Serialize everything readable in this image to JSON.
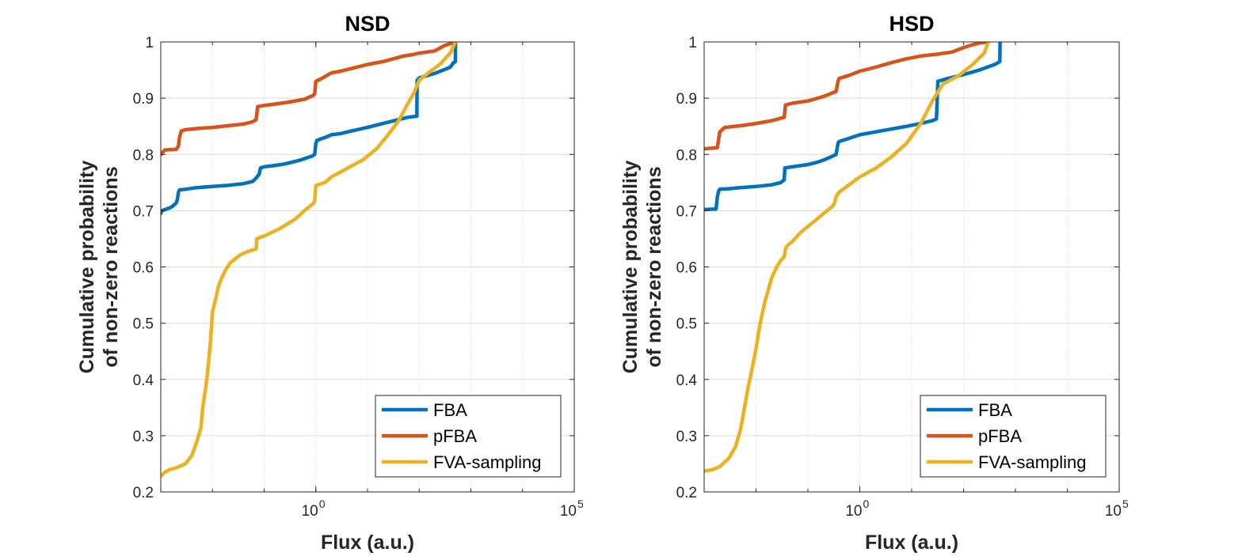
{
  "figure": {
    "background": "#ffffff"
  },
  "chart_data": [
    {
      "type": "line",
      "title": "NSD",
      "xlabel": "Flux (a.u.)",
      "ylabel": [
        "Cumulative probability",
        "of non-zero reactions"
      ],
      "xscale": "log",
      "xlim": [
        0.001,
        100000.0
      ],
      "ylim": [
        0.2,
        1.0
      ],
      "yticks": [
        "0.2",
        "0.3",
        "0.4",
        "0.5",
        "0.6",
        "0.7",
        "0.8",
        "0.9",
        "1"
      ],
      "xticks": [
        {
          "base": "10",
          "exp": "0",
          "value": 1
        },
        {
          "base": "10",
          "exp": "5",
          "value": 100000
        }
      ],
      "grid": true,
      "legend_position": "bottom-right",
      "series": [
        {
          "name": "FBA",
          "color": "#0072BD",
          "x": [
            0.001,
            0.00105,
            0.0012,
            0.0015,
            0.0017,
            0.002,
            0.0021,
            0.0022,
            0.0023,
            0.003,
            0.005,
            0.01,
            0.02,
            0.04,
            0.06,
            0.07,
            0.08,
            0.085,
            0.1,
            0.15,
            0.25,
            0.5,
            0.85,
            0.95,
            1.0,
            1.05,
            1.3,
            1.5,
            2,
            3,
            5,
            10,
            20,
            40,
            60,
            90,
            91,
            100,
            200,
            400,
            450,
            500,
            505
          ],
          "y": [
            0.695,
            0.7,
            0.702,
            0.705,
            0.708,
            0.714,
            0.72,
            0.733,
            0.737,
            0.738,
            0.741,
            0.743,
            0.745,
            0.748,
            0.752,
            0.758,
            0.765,
            0.776,
            0.778,
            0.78,
            0.783,
            0.79,
            0.797,
            0.8,
            0.82,
            0.825,
            0.828,
            0.83,
            0.835,
            0.837,
            0.842,
            0.848,
            0.855,
            0.862,
            0.866,
            0.868,
            0.932,
            0.936,
            0.944,
            0.955,
            0.962,
            0.965,
            1.0
          ]
        },
        {
          "name": "pFBA",
          "color": "#D95319",
          "x": [
            0.001,
            0.0012,
            0.002,
            0.0022,
            0.0023,
            0.0025,
            0.003,
            0.005,
            0.01,
            0.02,
            0.04,
            0.06,
            0.07,
            0.075,
            0.1,
            0.15,
            0.3,
            0.6,
            0.9,
            0.95,
            1.0,
            1.3,
            2,
            3,
            5,
            10,
            20,
            50,
            70,
            100,
            200,
            300,
            400,
            500
          ],
          "y": [
            0.8,
            0.808,
            0.809,
            0.815,
            0.83,
            0.842,
            0.844,
            0.846,
            0.848,
            0.851,
            0.854,
            0.858,
            0.862,
            0.885,
            0.887,
            0.889,
            0.893,
            0.898,
            0.905,
            0.908,
            0.93,
            0.935,
            0.945,
            0.948,
            0.953,
            0.96,
            0.965,
            0.975,
            0.977,
            0.98,
            0.984,
            0.993,
            0.997,
            1.0
          ]
        },
        {
          "name": "FVA-sampling",
          "color": "#EDB120",
          "x": [
            0.001,
            0.0012,
            0.0015,
            0.002,
            0.003,
            0.004,
            0.005,
            0.006,
            0.0065,
            0.007,
            0.0075,
            0.008,
            0.009,
            0.01,
            0.012,
            0.013,
            0.015,
            0.018,
            0.022,
            0.028,
            0.035,
            0.05,
            0.07,
            0.072,
            0.1,
            0.2,
            0.4,
            0.6,
            0.9,
            0.95,
            1.0,
            1.5,
            2,
            4,
            8,
            15,
            25,
            40,
            60,
            80,
            100,
            150,
            250,
            400,
            500
          ],
          "y": [
            0.228,
            0.235,
            0.24,
            0.243,
            0.25,
            0.265,
            0.29,
            0.315,
            0.35,
            0.37,
            0.39,
            0.41,
            0.46,
            0.52,
            0.55,
            0.565,
            0.58,
            0.595,
            0.607,
            0.615,
            0.622,
            0.628,
            0.632,
            0.65,
            0.655,
            0.668,
            0.685,
            0.7,
            0.713,
            0.718,
            0.745,
            0.75,
            0.76,
            0.775,
            0.79,
            0.81,
            0.835,
            0.86,
            0.89,
            0.91,
            0.932,
            0.945,
            0.96,
            0.98,
            1.0
          ]
        }
      ]
    },
    {
      "type": "line",
      "title": "HSD",
      "xlabel": "Flux (a.u.)",
      "ylabel": [
        "Cumulative probability",
        "of non-zero reactions"
      ],
      "xscale": "log",
      "xlim": [
        0.001,
        100000.0
      ],
      "ylim": [
        0.2,
        1.0
      ],
      "yticks": [
        "0.2",
        "0.3",
        "0.4",
        "0.5",
        "0.6",
        "0.7",
        "0.8",
        "0.9",
        "1"
      ],
      "xticks": [
        {
          "base": "10",
          "exp": "0",
          "value": 1
        },
        {
          "base": "10",
          "exp": "5",
          "value": 100000
        }
      ],
      "grid": true,
      "legend_position": "bottom-right",
      "series": [
        {
          "name": "FBA",
          "color": "#0072BD",
          "x": [
            0.001,
            0.0017,
            0.0018,
            0.0019,
            0.002,
            0.003,
            0.005,
            0.01,
            0.02,
            0.03,
            0.035,
            0.036,
            0.05,
            0.1,
            0.15,
            0.2,
            0.3,
            0.35,
            0.38,
            0.4,
            0.6,
            1.0,
            2,
            4,
            8,
            15,
            25,
            30,
            32,
            50,
            100,
            200,
            400,
            500,
            505
          ],
          "y": [
            0.702,
            0.703,
            0.725,
            0.735,
            0.738,
            0.739,
            0.741,
            0.743,
            0.746,
            0.75,
            0.755,
            0.776,
            0.778,
            0.782,
            0.786,
            0.79,
            0.797,
            0.8,
            0.82,
            0.823,
            0.828,
            0.835,
            0.84,
            0.845,
            0.85,
            0.855,
            0.86,
            0.863,
            0.93,
            0.935,
            0.942,
            0.95,
            0.96,
            0.965,
            1.0
          ]
        },
        {
          "name": "pFBA",
          "color": "#D95319",
          "x": [
            0.001,
            0.0018,
            0.002,
            0.0025,
            0.005,
            0.01,
            0.02,
            0.035,
            0.037,
            0.05,
            0.1,
            0.2,
            0.35,
            0.38,
            0.4,
            0.6,
            1.0,
            2,
            4,
            8,
            15,
            30,
            60,
            100,
            150,
            200,
            300
          ],
          "y": [
            0.81,
            0.812,
            0.84,
            0.848,
            0.851,
            0.855,
            0.86,
            0.866,
            0.888,
            0.891,
            0.895,
            0.903,
            0.912,
            0.93,
            0.935,
            0.94,
            0.948,
            0.955,
            0.963,
            0.97,
            0.975,
            0.978,
            0.982,
            0.99,
            0.995,
            0.998,
            1.0
          ]
        },
        {
          "name": "FVA-sampling",
          "color": "#EDB120",
          "x": [
            0.001,
            0.0015,
            0.002,
            0.003,
            0.004,
            0.005,
            0.006,
            0.007,
            0.008,
            0.01,
            0.012,
            0.015,
            0.02,
            0.025,
            0.03,
            0.035,
            0.037,
            0.04,
            0.05,
            0.07,
            0.1,
            0.15,
            0.2,
            0.3,
            0.33,
            0.35,
            0.4,
            0.6,
            1.0,
            2,
            4,
            8,
            15,
            25,
            40,
            80,
            150,
            250,
            300
          ],
          "y": [
            0.237,
            0.24,
            0.245,
            0.26,
            0.28,
            0.31,
            0.35,
            0.385,
            0.41,
            0.455,
            0.5,
            0.54,
            0.58,
            0.6,
            0.612,
            0.618,
            0.632,
            0.638,
            0.645,
            0.66,
            0.672,
            0.685,
            0.695,
            0.708,
            0.715,
            0.725,
            0.733,
            0.745,
            0.76,
            0.775,
            0.795,
            0.82,
            0.855,
            0.895,
            0.925,
            0.94,
            0.96,
            0.98,
            1.0
          ]
        }
      ]
    }
  ]
}
